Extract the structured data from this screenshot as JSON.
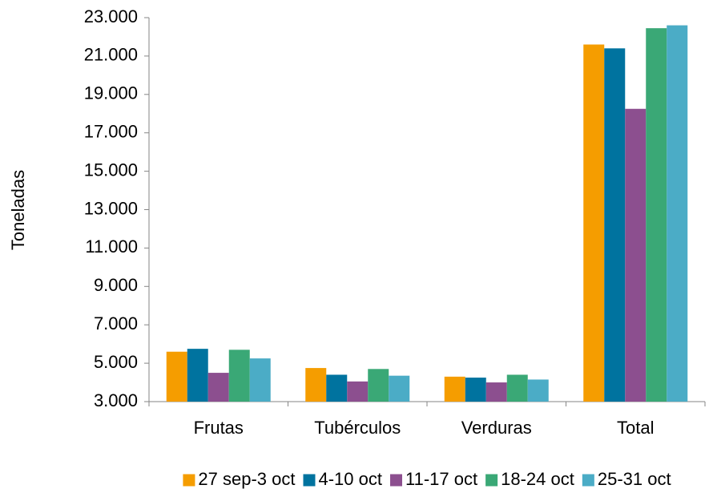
{
  "chart_data": {
    "type": "bar",
    "y_label": "Toneladas",
    "categories": [
      "Frutas",
      "Tubérculos",
      "Verduras",
      "Total"
    ],
    "series": [
      {
        "name": "27 sep-3 oct",
        "color": "#f59d00",
        "values": [
          5600,
          4750,
          4300,
          21600
        ]
      },
      {
        "name": "4-10 oct",
        "color": "#00739f",
        "values": [
          5750,
          4400,
          4250,
          21400
        ]
      },
      {
        "name": "11-17 oct",
        "color": "#8c4f8f",
        "values": [
          4500,
          4050,
          4000,
          18250
        ]
      },
      {
        "name": "18-24 oct",
        "color": "#3aa876",
        "values": [
          5700,
          4700,
          4400,
          22450
        ]
      },
      {
        "name": "25-31 oct",
        "color": "#4bacc6",
        "values": [
          5250,
          4350,
          4150,
          22600
        ]
      }
    ],
    "ylim": [
      3000,
      23000
    ],
    "yticks": [
      {
        "value": 3000,
        "label": "3.000"
      },
      {
        "value": 5000,
        "label": "5.000"
      },
      {
        "value": 7000,
        "label": "7.000"
      },
      {
        "value": 9000,
        "label": "9.000"
      },
      {
        "value": 11000,
        "label": "11.000"
      },
      {
        "value": 13000,
        "label": "13.000"
      },
      {
        "value": 15000,
        "label": "15.000"
      },
      {
        "value": 17000,
        "label": "17.000"
      },
      {
        "value": 19000,
        "label": "19.000"
      },
      {
        "value": 21000,
        "label": "21.000"
      },
      {
        "value": 23000,
        "label": "23.000"
      }
    ],
    "grid": false,
    "legend": "bottom"
  }
}
